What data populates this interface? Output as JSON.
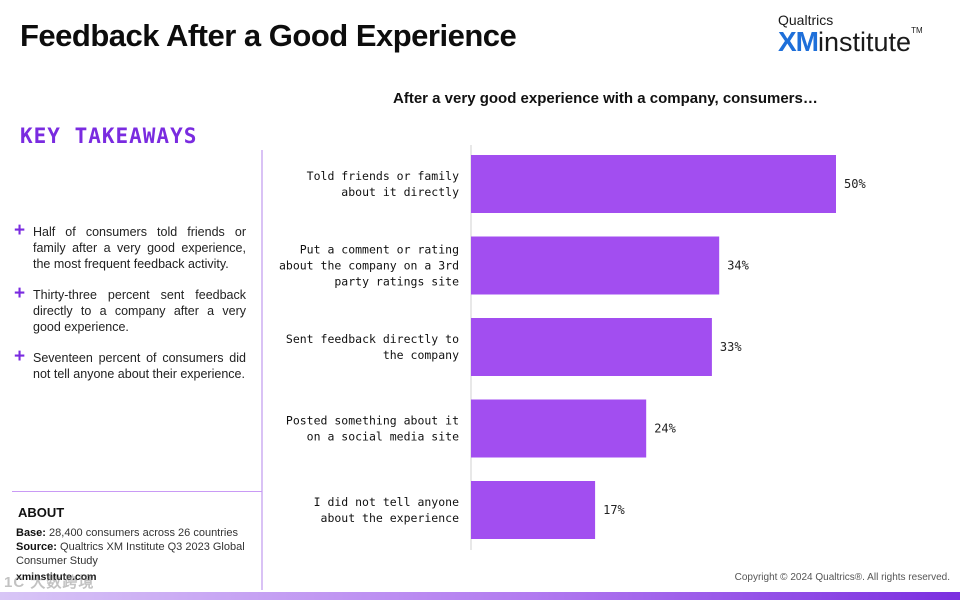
{
  "header": {
    "title": "Feedback After a Good Experience",
    "logo_small": "Qualtrics",
    "logo_xm": "XM",
    "logo_rest": "institute",
    "logo_tm": "TM"
  },
  "key_takeaways": {
    "heading": "KEY TAKEAWAYS",
    "items": [
      "Half of consumers told friends or family after a very good experience, the most frequent feedback activity.",
      "Thirty-three percent sent feedback directly to a company after a very good experience.",
      "Seventeen percent of consumers did not tell anyone about their experience."
    ]
  },
  "about": {
    "title": "ABOUT",
    "base_label": "Base:",
    "base_text": "28,400 consumers across 26 countries",
    "source_label": "Source:",
    "source_text": "Qualtrics XM Institute Q3 2023 Global Consumer Study",
    "domain": "xminstitute.com"
  },
  "watermark": "1C 大数跨境",
  "footer": {
    "copyright": "Copyright © 2024 Qualtrics®. All rights reserved."
  },
  "colors": {
    "accent": "#7a2be0",
    "bar": "#a24ef0",
    "logo_blue": "#1e6fd9"
  },
  "chart_data": {
    "type": "bar",
    "orientation": "horizontal",
    "title": "After a very good experience with a company, consumers…",
    "categories": [
      "Told friends or family about it directly",
      "Put a comment or rating about the company on a 3rd party ratings site",
      "Sent feedback directly to the company",
      "Posted something about it on a social media site",
      "I did not tell anyone about the experience"
    ],
    "category_lines": [
      [
        "Told friends or family",
        "about it directly"
      ],
      [
        "Put a comment or rating",
        "about the company on a 3rd",
        "party ratings site"
      ],
      [
        "Sent feedback directly to",
        "the company"
      ],
      [
        "Posted something about it",
        "on a social media site"
      ],
      [
        "I did not tell anyone",
        "about the experience"
      ]
    ],
    "values": [
      50,
      34,
      33,
      24,
      17
    ],
    "value_labels": [
      "50%",
      "34%",
      "33%",
      "24%",
      "17%"
    ],
    "unit": "%",
    "xlim": [
      0,
      60
    ]
  }
}
